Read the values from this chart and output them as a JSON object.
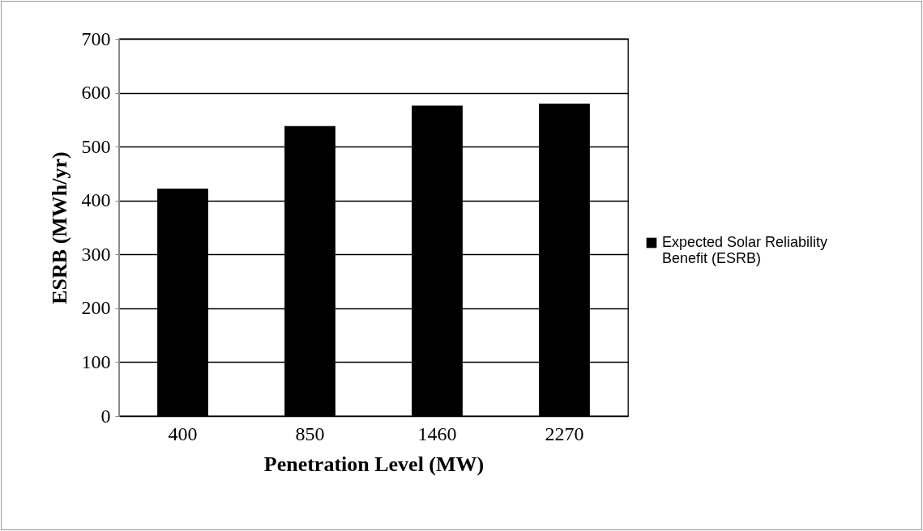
{
  "chart_data": {
    "type": "bar",
    "xlabel": "Penetration Level (MW)",
    "ylabel": "ESRB (MWh/yr)",
    "categories": [
      "400",
      "850",
      "1460",
      "2270"
    ],
    "series": [
      {
        "name": "Expected Solar Reliability Benefit (ESRB)",
        "color": "#000000",
        "values": [
          422,
          538,
          576,
          580
        ]
      }
    ],
    "ylim": [
      0,
      700
    ],
    "yticks": [
      0,
      100,
      200,
      300,
      400,
      500,
      600,
      700
    ],
    "grid": "y",
    "legend": "right"
  }
}
